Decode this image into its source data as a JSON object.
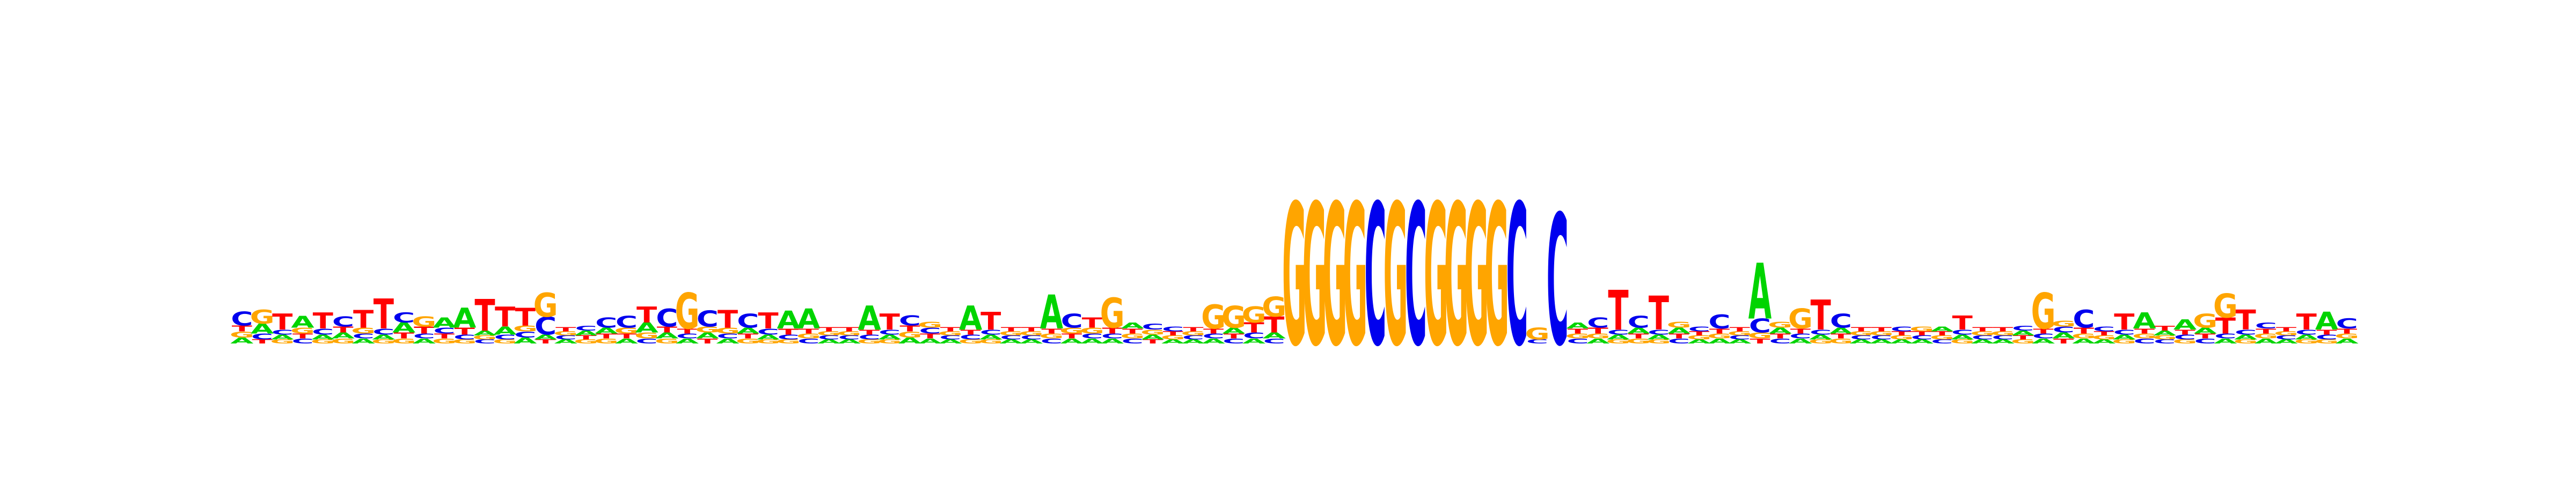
{
  "chart_data": {
    "type": "sequence-logo",
    "alphabet": [
      "A",
      "C",
      "G",
      "T"
    ],
    "colors": {
      "A": "#00d400",
      "C": "#0000ee",
      "G": "#ffa500",
      "T": "#ff0000"
    },
    "y_unit": "bits",
    "ylim": [
      0,
      2
    ],
    "axes_visible": false,
    "columns": [
      {
        "A": 0.06,
        "C": 0.14,
        "G": 0.06,
        "T": 0.06
      },
      {
        "A": 0.1,
        "C": 0.06,
        "G": 0.14,
        "T": 0.04
      },
      {
        "A": 0.05,
        "C": 0.05,
        "G": 0.04,
        "T": 0.16
      },
      {
        "A": 0.12,
        "C": 0.05,
        "G": 0.06,
        "T": 0.05
      },
      {
        "A": 0.05,
        "C": 0.06,
        "G": 0.04,
        "T": 0.16
      },
      {
        "A": 0.06,
        "C": 0.1,
        "G": 0.05,
        "T": 0.06
      },
      {
        "A": 0.05,
        "C": 0.05,
        "G": 0.06,
        "T": 0.18
      },
      {
        "A": 0.05,
        "C": 0.06,
        "G": 0.04,
        "T": 0.3
      },
      {
        "A": 0.1,
        "C": 0.1,
        "G": 0.05,
        "T": 0.06
      },
      {
        "A": 0.05,
        "C": 0.05,
        "G": 0.1,
        "T": 0.07
      },
      {
        "A": 0.1,
        "C": 0.06,
        "G": 0.05,
        "T": 0.05
      },
      {
        "A": 0.2,
        "C": 0.05,
        "G": 0.04,
        "T": 0.07
      },
      {
        "A": 0.05,
        "C": 0.04,
        "G": 0.04,
        "T": 0.32
      },
      {
        "A": 0.08,
        "C": 0.05,
        "G": 0.04,
        "T": 0.2
      },
      {
        "A": 0.06,
        "C": 0.06,
        "G": 0.06,
        "T": 0.18
      },
      {
        "A": 0.05,
        "C": 0.18,
        "G": 0.24,
        "T": 0.04
      },
      {
        "A": 0.04,
        "C": 0.04,
        "G": 0.04,
        "T": 0.04
      },
      {
        "A": 0.05,
        "C": 0.05,
        "G": 0.04,
        "T": 0.04
      },
      {
        "A": 0.06,
        "C": 0.1,
        "G": 0.05,
        "T": 0.05
      },
      {
        "A": 0.05,
        "C": 0.12,
        "G": 0.06,
        "T": 0.05
      },
      {
        "A": 0.1,
        "C": 0.05,
        "G": 0.06,
        "T": 0.16
      },
      {
        "A": 0.06,
        "C": 0.18,
        "G": 0.05,
        "T": 0.06
      },
      {
        "A": 0.05,
        "C": 0.05,
        "G": 0.36,
        "T": 0.05
      },
      {
        "A": 0.06,
        "C": 0.16,
        "G": 0.06,
        "T": 0.05
      },
      {
        "A": 0.05,
        "C": 0.05,
        "G": 0.06,
        "T": 0.18
      },
      {
        "A": 0.06,
        "C": 0.14,
        "G": 0.05,
        "T": 0.05
      },
      {
        "A": 0.05,
        "C": 0.06,
        "G": 0.04,
        "T": 0.16
      },
      {
        "A": 0.18,
        "C": 0.05,
        "G": 0.04,
        "T": 0.06
      },
      {
        "A": 0.2,
        "C": 0.05,
        "G": 0.05,
        "T": 0.05
      },
      {
        "A": 0.04,
        "C": 0.04,
        "G": 0.04,
        "T": 0.04
      },
      {
        "A": 0.04,
        "C": 0.04,
        "G": 0.04,
        "T": 0.04
      },
      {
        "A": 0.24,
        "C": 0.05,
        "G": 0.04,
        "T": 0.05
      },
      {
        "A": 0.05,
        "C": 0.05,
        "G": 0.04,
        "T": 0.16
      },
      {
        "A": 0.06,
        "C": 0.1,
        "G": 0.06,
        "T": 0.06
      },
      {
        "A": 0.05,
        "C": 0.06,
        "G": 0.06,
        "T": 0.05
      },
      {
        "A": 0.04,
        "C": 0.04,
        "G": 0.04,
        "T": 0.04
      },
      {
        "A": 0.24,
        "C": 0.05,
        "G": 0.04,
        "T": 0.05
      },
      {
        "A": 0.05,
        "C": 0.05,
        "G": 0.04,
        "T": 0.18
      },
      {
        "A": 0.04,
        "C": 0.04,
        "G": 0.04,
        "T": 0.04
      },
      {
        "A": 0.04,
        "C": 0.04,
        "G": 0.04,
        "T": 0.04
      },
      {
        "A": 0.34,
        "C": 0.05,
        "G": 0.05,
        "T": 0.05
      },
      {
        "A": 0.05,
        "C": 0.14,
        "G": 0.06,
        "T": 0.05
      },
      {
        "A": 0.05,
        "C": 0.05,
        "G": 0.06,
        "T": 0.1
      },
      {
        "A": 0.05,
        "C": 0.05,
        "G": 0.3,
        "T": 0.06
      },
      {
        "A": 0.06,
        "C": 0.05,
        "G": 0.05,
        "T": 0.05
      },
      {
        "A": 0.05,
        "C": 0.06,
        "G": 0.05,
        "T": 0.04
      },
      {
        "A": 0.04,
        "C": 0.05,
        "G": 0.04,
        "T": 0.04
      },
      {
        "A": 0.04,
        "C": 0.04,
        "G": 0.04,
        "T": 0.04
      },
      {
        "A": 0.05,
        "C": 0.05,
        "G": 0.24,
        "T": 0.05
      },
      {
        "A": 0.06,
        "C": 0.05,
        "G": 0.22,
        "T": 0.05
      },
      {
        "A": 0.05,
        "C": 0.06,
        "G": 0.16,
        "T": 0.1
      },
      {
        "A": 0.06,
        "C": 0.05,
        "G": 0.2,
        "T": 0.16
      },
      {
        "A": 0.0,
        "C": 0.0,
        "G": 1.42,
        "T": 0.0
      },
      {
        "A": 0.0,
        "C": 0.0,
        "G": 1.42,
        "T": 0.0
      },
      {
        "A": 0.0,
        "C": 0.0,
        "G": 1.42,
        "T": 0.0
      },
      {
        "A": 0.0,
        "C": 0.0,
        "G": 1.42,
        "T": 0.0
      },
      {
        "A": 0.0,
        "C": 1.42,
        "G": 0.0,
        "T": 0.0
      },
      {
        "A": 0.0,
        "C": 0.0,
        "G": 1.42,
        "T": 0.0
      },
      {
        "A": 0.0,
        "C": 1.42,
        "G": 0.0,
        "T": 0.0
      },
      {
        "A": 0.0,
        "C": 0.0,
        "G": 1.42,
        "T": 0.0
      },
      {
        "A": 0.0,
        "C": 0.0,
        "G": 1.42,
        "T": 0.0
      },
      {
        "A": 0.0,
        "C": 0.0,
        "G": 1.42,
        "T": 0.0
      },
      {
        "A": 0.0,
        "C": 0.0,
        "G": 1.42,
        "T": 0.0
      },
      {
        "A": 0.0,
        "C": 1.42,
        "G": 0.0,
        "T": 0.0
      },
      {
        "A": 0.0,
        "C": 0.04,
        "G": 0.12,
        "T": 0.0
      },
      {
        "A": 0.0,
        "C": 1.31,
        "G": 0.0,
        "T": 0.0
      },
      {
        "A": 0.06,
        "C": 0.05,
        "G": 0.05,
        "T": 0.05
      },
      {
        "A": 0.05,
        "C": 0.1,
        "G": 0.05,
        "T": 0.06
      },
      {
        "A": 0.05,
        "C": 0.05,
        "G": 0.04,
        "T": 0.4
      },
      {
        "A": 0.06,
        "C": 0.12,
        "G": 0.05,
        "T": 0.05
      },
      {
        "A": 0.05,
        "C": 0.05,
        "G": 0.04,
        "T": 0.34
      },
      {
        "A": 0.06,
        "C": 0.05,
        "G": 0.06,
        "T": 0.05
      },
      {
        "A": 0.04,
        "C": 0.05,
        "G": 0.04,
        "T": 0.04
      },
      {
        "A": 0.05,
        "C": 0.14,
        "G": 0.05,
        "T": 0.05
      },
      {
        "A": 0.04,
        "C": 0.04,
        "G": 0.04,
        "T": 0.04
      },
      {
        "A": 0.56,
        "C": 0.14,
        "G": 0.06,
        "T": 0.05
      },
      {
        "A": 0.06,
        "C": 0.05,
        "G": 0.06,
        "T": 0.05
      },
      {
        "A": 0.05,
        "C": 0.05,
        "G": 0.2,
        "T": 0.05
      },
      {
        "A": 0.05,
        "C": 0.05,
        "G": 0.04,
        "T": 0.3
      },
      {
        "A": 0.06,
        "C": 0.14,
        "G": 0.05,
        "T": 0.05
      },
      {
        "A": 0.04,
        "C": 0.04,
        "G": 0.04,
        "T": 0.04
      },
      {
        "A": 0.04,
        "C": 0.04,
        "G": 0.04,
        "T": 0.04
      },
      {
        "A": 0.04,
        "C": 0.05,
        "G": 0.04,
        "T": 0.04
      },
      {
        "A": 0.04,
        "C": 0.04,
        "G": 0.05,
        "T": 0.04
      },
      {
        "A": 0.05,
        "C": 0.04,
        "G": 0.04,
        "T": 0.04
      },
      {
        "A": 0.05,
        "C": 0.05,
        "G": 0.04,
        "T": 0.14
      },
      {
        "A": 0.04,
        "C": 0.04,
        "G": 0.04,
        "T": 0.04
      },
      {
        "A": 0.04,
        "C": 0.04,
        "G": 0.04,
        "T": 0.04
      },
      {
        "A": 0.05,
        "C": 0.05,
        "G": 0.04,
        "T": 0.04
      },
      {
        "A": 0.05,
        "C": 0.05,
        "G": 0.36,
        "T": 0.05
      },
      {
        "A": 0.06,
        "C": 0.06,
        "G": 0.06,
        "T": 0.05
      },
      {
        "A": 0.05,
        "C": 0.18,
        "G": 0.05,
        "T": 0.06
      },
      {
        "A": 0.04,
        "C": 0.05,
        "G": 0.04,
        "T": 0.04
      },
      {
        "A": 0.05,
        "C": 0.05,
        "G": 0.04,
        "T": 0.16
      },
      {
        "A": 0.16,
        "C": 0.05,
        "G": 0.05,
        "T": 0.05
      },
      {
        "A": 0.05,
        "C": 0.04,
        "G": 0.04,
        "T": 0.05
      },
      {
        "A": 0.1,
        "C": 0.05,
        "G": 0.04,
        "T": 0.05
      },
      {
        "A": 0.06,
        "C": 0.05,
        "G": 0.14,
        "T": 0.05
      },
      {
        "A": 0.05,
        "C": 0.05,
        "G": 0.24,
        "T": 0.16
      },
      {
        "A": 0.05,
        "C": 0.05,
        "G": 0.04,
        "T": 0.2
      },
      {
        "A": 0.05,
        "C": 0.06,
        "G": 0.05,
        "T": 0.05
      },
      {
        "A": 0.04,
        "C": 0.04,
        "G": 0.04,
        "T": 0.04
      },
      {
        "A": 0.05,
        "C": 0.05,
        "G": 0.04,
        "T": 0.16
      },
      {
        "A": 0.18,
        "C": 0.05,
        "G": 0.04,
        "T": 0.05
      },
      {
        "A": 0.05,
        "C": 0.1,
        "G": 0.05,
        "T": 0.05
      }
    ]
  }
}
